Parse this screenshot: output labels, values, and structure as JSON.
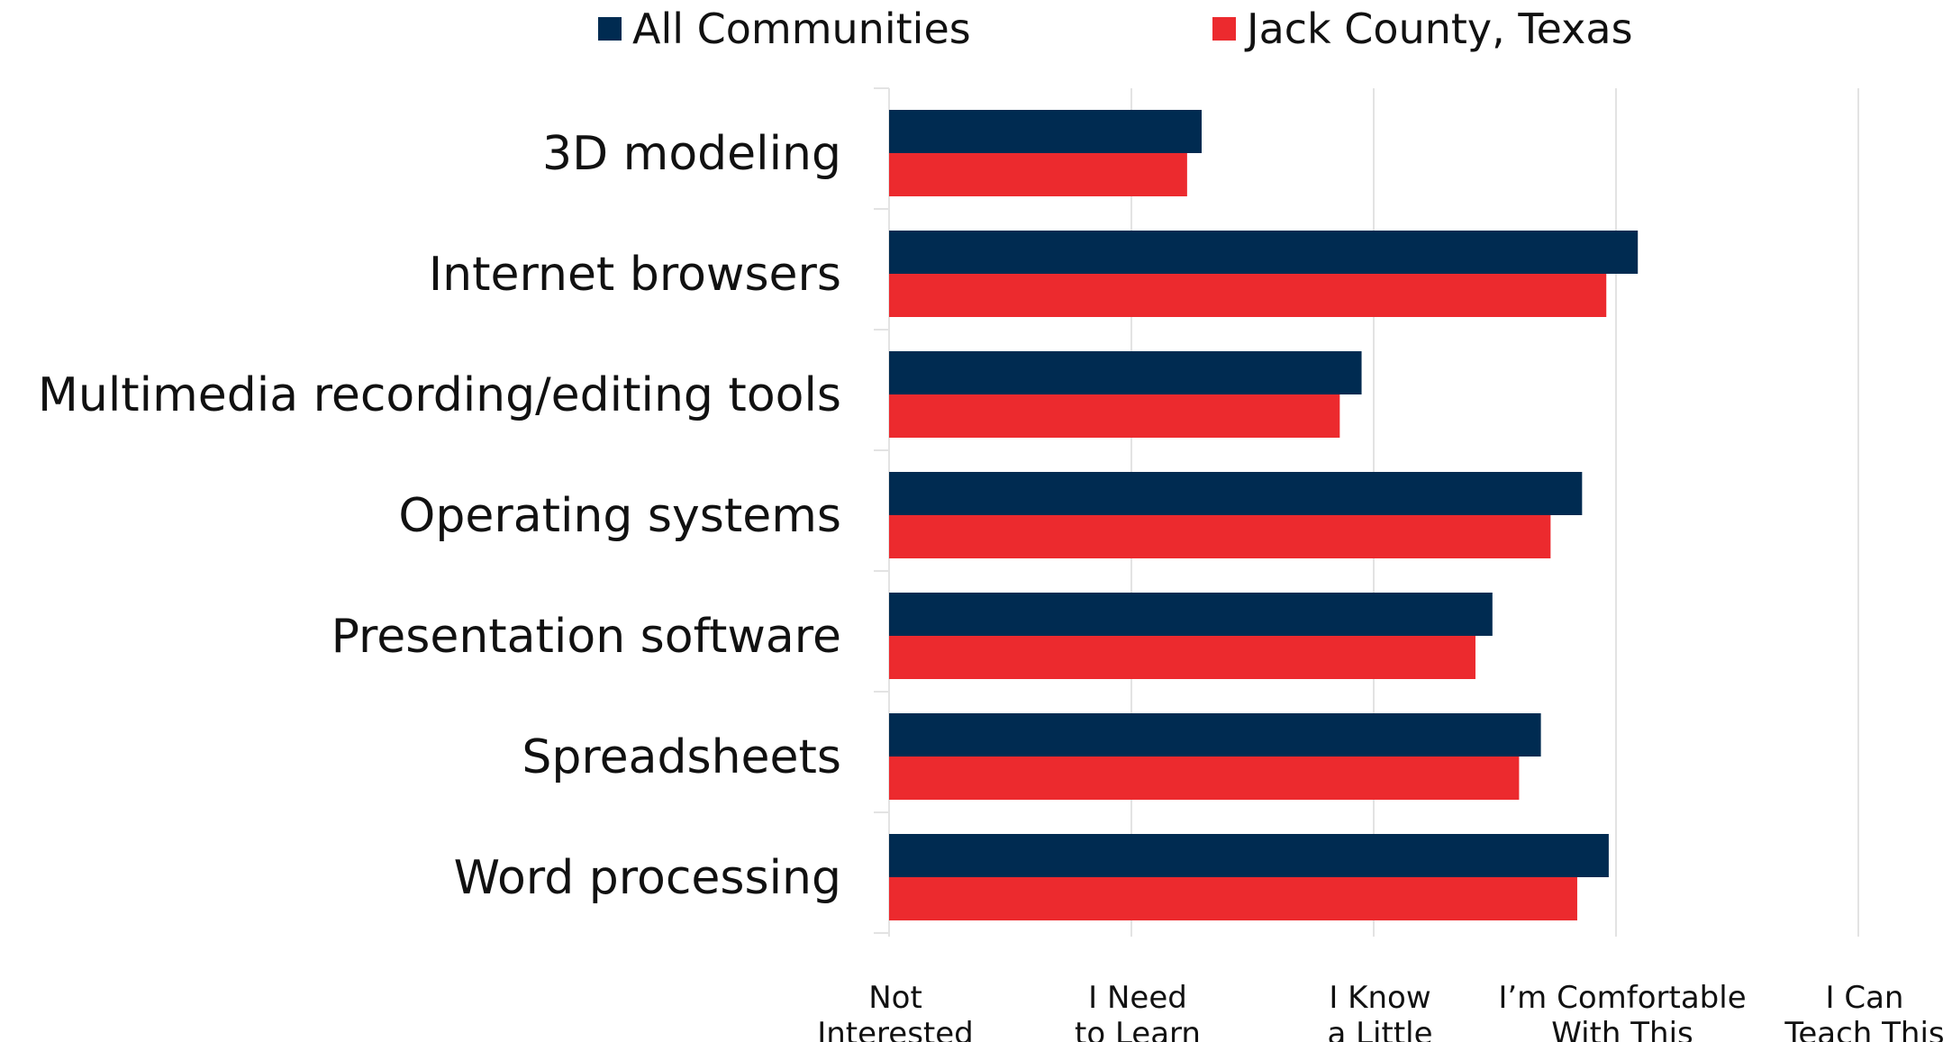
{
  "legend": {
    "items": [
      {
        "label": "All Communities",
        "color": "#002B51"
      },
      {
        "label": "Jack County, Texas",
        "color": "#EC2A2E"
      }
    ]
  },
  "chart_data": {
    "type": "bar",
    "orientation": "horizontal",
    "categories": [
      "3D modeling",
      "Internet browsers",
      "Multimedia recording/editing tools",
      "Operating systems",
      "Presentation software",
      "Spreadsheets",
      "Word processing"
    ],
    "series": [
      {
        "name": "All Communities",
        "color": "#002B51",
        "values": [
          1.29,
          3.09,
          1.95,
          2.86,
          2.49,
          2.69,
          2.97
        ]
      },
      {
        "name": "Jack County, Texas",
        "color": "#EC2A2E",
        "values": [
          1.23,
          2.96,
          1.86,
          2.73,
          2.42,
          2.6,
          2.84
        ]
      }
    ],
    "xlim": [
      0,
      4
    ],
    "xticks": [
      {
        "value": 0,
        "lines": [
          "Not",
          "Interested"
        ]
      },
      {
        "value": 1,
        "lines": [
          "I Need",
          "to Learn"
        ]
      },
      {
        "value": 2,
        "lines": [
          "I Know",
          "a Little"
        ]
      },
      {
        "value": 3,
        "lines": [
          "I’m Comfortable",
          "With This"
        ]
      },
      {
        "value": 4,
        "lines": [
          "I Can",
          "Teach This"
        ]
      }
    ],
    "grid": true,
    "legend_position": "top"
  }
}
